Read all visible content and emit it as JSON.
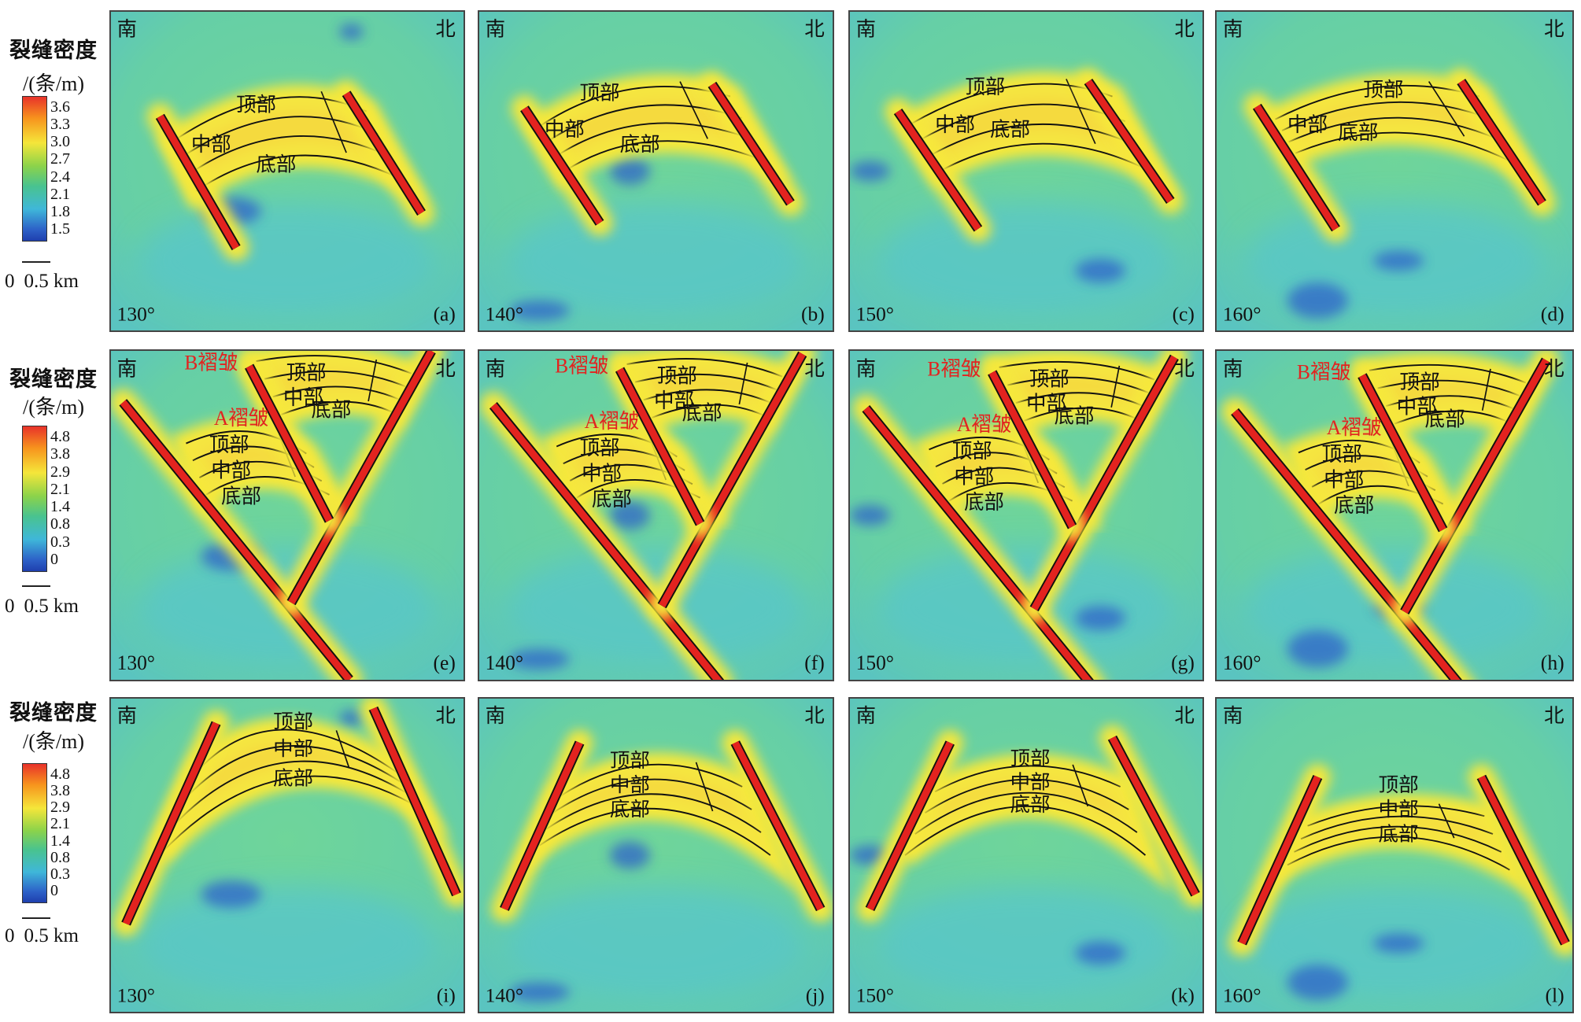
{
  "rows": [
    {
      "legend": {
        "title": "裂缝密度",
        "unit": "/(条/m)",
        "ticks": [
          "3.6",
          "3.3",
          "3.0",
          "2.7",
          "2.4",
          "2.1",
          "1.8",
          "1.5"
        ],
        "scale_start": "0",
        "scale_end": "0.5 km"
      },
      "panels": [
        {
          "south": "南",
          "north": "北",
          "angle": "130°",
          "label": "(a)",
          "zones": [
            "顶部",
            "中部",
            "底部"
          ]
        },
        {
          "south": "南",
          "north": "北",
          "angle": "140°",
          "label": "(b)",
          "zones": [
            "顶部",
            "中部",
            "底部"
          ]
        },
        {
          "south": "南",
          "north": "北",
          "angle": "150°",
          "label": "(c)",
          "zones": [
            "顶部",
            "中部",
            "底部"
          ]
        },
        {
          "south": "南",
          "north": "北",
          "angle": "160°",
          "label": "(d)",
          "zones": [
            "顶部",
            "中部",
            "底部"
          ]
        }
      ]
    },
    {
      "legend": {
        "title": "裂缝密度",
        "unit": "/(条/m)",
        "ticks": [
          "4.8",
          "3.8",
          "2.9",
          "2.1",
          "1.4",
          "0.8",
          "0.3",
          "0"
        ],
        "scale_start": "0",
        "scale_end": "0.5 km"
      },
      "panels": [
        {
          "south": "南",
          "north": "北",
          "angle": "130°",
          "label": "(e)",
          "folds": [
            {
              "name": "A褶皱",
              "zones": [
                "顶部",
                "中部",
                "底部"
              ]
            },
            {
              "name": "B褶皱",
              "zones": [
                "顶部",
                "中部",
                "底部"
              ]
            }
          ]
        },
        {
          "south": "南",
          "north": "北",
          "angle": "140°",
          "label": "(f)",
          "folds": [
            {
              "name": "A褶皱",
              "zones": [
                "顶部",
                "中部",
                "底部"
              ]
            },
            {
              "name": "B褶皱",
              "zones": [
                "顶部",
                "中部",
                "底部"
              ]
            }
          ]
        },
        {
          "south": "南",
          "north": "北",
          "angle": "150°",
          "label": "(g)",
          "folds": [
            {
              "name": "A褶皱",
              "zones": [
                "顶部",
                "中部",
                "底部"
              ]
            },
            {
              "name": "B褶皱",
              "zones": [
                "顶部",
                "中部",
                "底部"
              ]
            }
          ]
        },
        {
          "south": "南",
          "north": "北",
          "angle": "160°",
          "label": "(h)",
          "folds": [
            {
              "name": "A褶皱",
              "zones": [
                "顶部",
                "中部",
                "底部"
              ]
            },
            {
              "name": "B褶皱",
              "zones": [
                "顶部",
                "中部",
                "底部"
              ]
            }
          ]
        }
      ]
    },
    {
      "legend": {
        "title": "裂缝密度",
        "unit": "/(条/m)",
        "ticks": [
          "4.8",
          "3.8",
          "2.9",
          "2.1",
          "1.4",
          "0.8",
          "0.3",
          "0"
        ],
        "scale_start": "0",
        "scale_end": "0.5 km"
      },
      "panels": [
        {
          "south": "南",
          "north": "北",
          "angle": "130°",
          "label": "(i)",
          "zones": [
            "顶部",
            "中部",
            "底部"
          ]
        },
        {
          "south": "南",
          "north": "北",
          "angle": "140°",
          "label": "(j)",
          "zones": [
            "顶部",
            "中部",
            "底部"
          ]
        },
        {
          "south": "南",
          "north": "北",
          "angle": "150°",
          "label": "(k)",
          "zones": [
            "顶部",
            "中部",
            "底部"
          ]
        },
        {
          "south": "南",
          "north": "北",
          "angle": "160°",
          "label": "(l)",
          "zones": [
            "顶部",
            "中部",
            "底部"
          ]
        }
      ]
    }
  ]
}
